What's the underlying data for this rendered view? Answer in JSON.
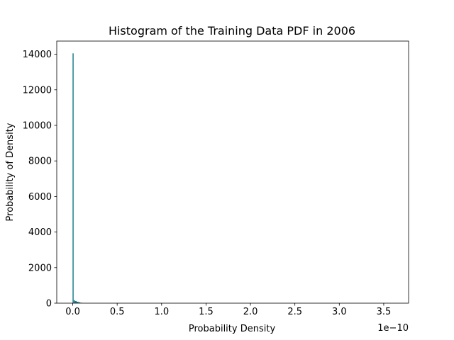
{
  "chart_data": {
    "type": "bar",
    "title": "Histogram of the Training Data PDF in 2006",
    "xlabel": "Probability Density",
    "ylabel": "Probability of Density",
    "x_offset_text": "1e−10",
    "x_scale": 1e-10,
    "xlim": [
      -0.18,
      3.78
    ],
    "ylim": [
      0,
      14740
    ],
    "x_ticks": [
      0.0,
      0.5,
      1.0,
      1.5,
      2.0,
      2.5,
      3.0,
      3.5
    ],
    "x_tick_labels": [
      "0.0",
      "0.5",
      "1.0",
      "1.5",
      "2.0",
      "2.5",
      "3.0",
      "3.5"
    ],
    "y_ticks": [
      0,
      2000,
      4000,
      6000,
      8000,
      10000,
      12000,
      14000
    ],
    "y_tick_labels": [
      "0",
      "2000",
      "4000",
      "6000",
      "8000",
      "10000",
      "12000",
      "14000"
    ],
    "bar_color": "#1f7f8f",
    "bins": [
      {
        "x0": -0.002,
        "x1": 0.01,
        "value": 14050
      },
      {
        "x0": 0.01,
        "x1": 0.025,
        "value": 160
      },
      {
        "x0": 0.025,
        "x1": 0.045,
        "value": 120
      },
      {
        "x0": 0.045,
        "x1": 0.065,
        "value": 80
      },
      {
        "x0": 0.065,
        "x1": 0.085,
        "value": 50
      },
      {
        "x0": 0.085,
        "x1": 0.105,
        "value": 25
      }
    ],
    "grid": false,
    "legend": "none"
  }
}
